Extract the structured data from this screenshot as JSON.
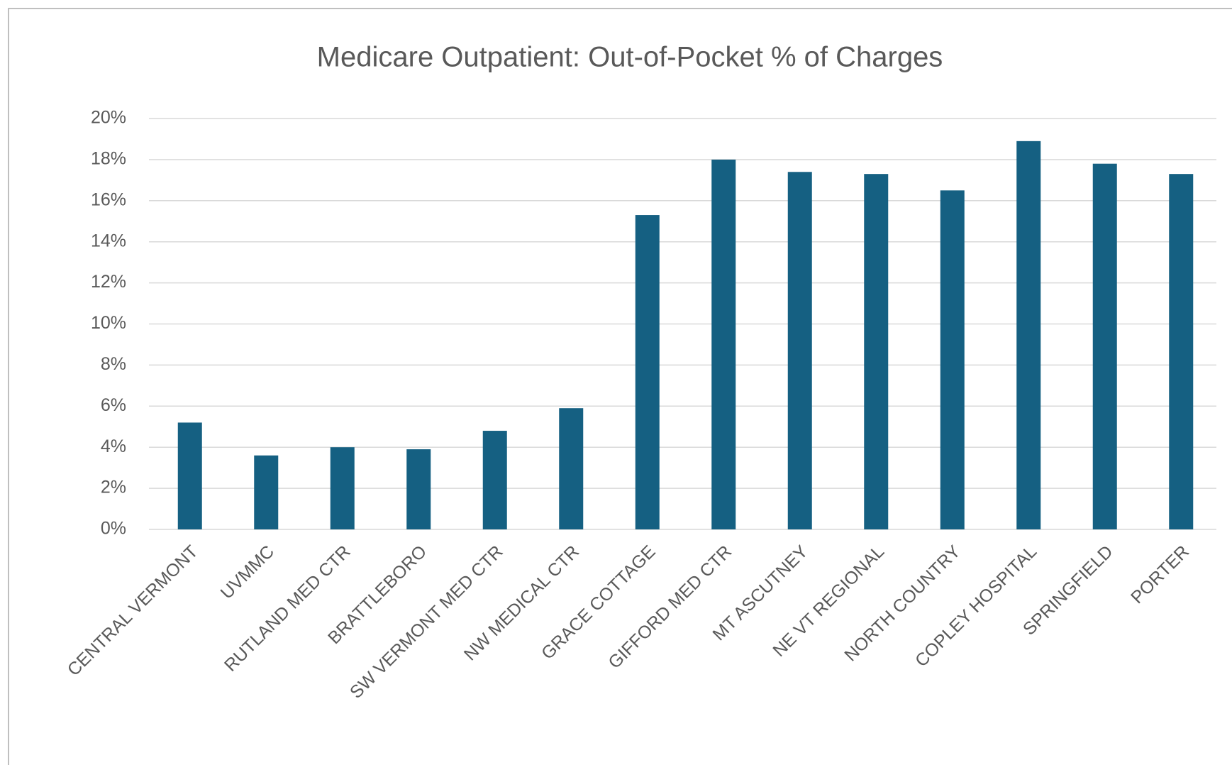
{
  "chart_data": {
    "type": "bar",
    "title": "Medicare Outpatient: Out-of-Pocket % of Charges",
    "categories": [
      "CENTRAL VERMONT",
      "UVMMC",
      "RUTLAND MED CTR",
      "BRATTLEBORO",
      "SW VERMONT MED CTR",
      "NW MEDICAL CTR",
      "GRACE COTTAGE",
      "GIFFORD MED CTR",
      "MT ASCUTNEY",
      "NE VT REGIONAL",
      "NORTH COUNTRY",
      "COPLEY HOSPITAL",
      "SPRINGFIELD",
      "PORTER"
    ],
    "values": [
      5.2,
      3.6,
      4.0,
      3.9,
      4.8,
      5.9,
      15.3,
      18.0,
      17.4,
      17.3,
      16.5,
      18.9,
      17.8,
      17.3
    ],
    "color": "#156082",
    "ylim": [
      0,
      20
    ],
    "yticks": [
      {
        "value": 0,
        "label": "0%"
      },
      {
        "value": 2,
        "label": "2%"
      },
      {
        "value": 4,
        "label": "4%"
      },
      {
        "value": 6,
        "label": "6%"
      },
      {
        "value": 8,
        "label": "8%"
      },
      {
        "value": 10,
        "label": "10%"
      },
      {
        "value": 12,
        "label": "12%"
      },
      {
        "value": 14,
        "label": "14%"
      },
      {
        "value": 16,
        "label": "16%"
      },
      {
        "value": 18,
        "label": "18%"
      },
      {
        "value": 20,
        "label": "20%"
      }
    ],
    "grid": true
  }
}
